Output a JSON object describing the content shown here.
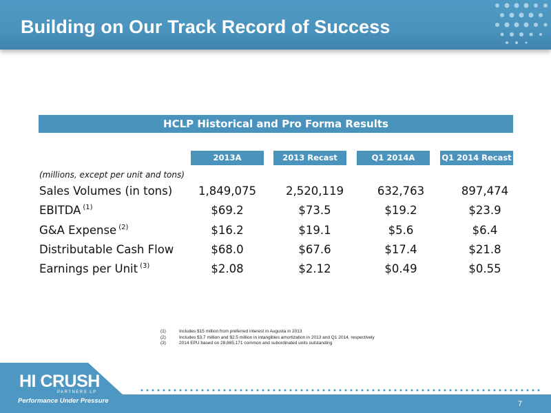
{
  "slide": {
    "title": "Building on Our Track Record of Success",
    "page_number": "7"
  },
  "table": {
    "banner": "HCLP Historical and Pro Forma Results",
    "columns": [
      "2013A",
      "2013 Recast",
      "Q1 2014A",
      "Q1 2014 Recast"
    ],
    "units_note": "(millions, except per unit and tons)",
    "rows": [
      {
        "label": "Sales Volumes (in tons)",
        "note": "",
        "values": [
          "1,849,075",
          "2,520,119",
          "632,763",
          "897,474"
        ]
      },
      {
        "label": "EBITDA",
        "note": "(1)",
        "values": [
          "$69.2",
          "$73.5",
          "$19.2",
          "$23.9"
        ]
      },
      {
        "label": "G&A Expense",
        "note": "(2)",
        "values": [
          "$16.2",
          "$19.1",
          "$5.6",
          "$6.4"
        ]
      },
      {
        "label": "Distributable Cash Flow",
        "note": "",
        "values": [
          "$68.0",
          "$67.6",
          "$17.4",
          "$21.8"
        ]
      },
      {
        "label": "Earnings per Unit",
        "note": "(3)",
        "values": [
          "$2.08",
          "$2.12",
          "$0.49",
          "$0.55"
        ]
      }
    ]
  },
  "footnotes": [
    {
      "num": "(1)",
      "text": "Includes $15 million from preferred interest in Augusta in 2013"
    },
    {
      "num": "(2)",
      "text": "Includes $3.7 million and $2.5 million in intangibles amortization in 2013 and Q1 2014, respectively"
    },
    {
      "num": "(3)",
      "text": "2014 EPU based on 28,865,171 common and subordinated units outstanding"
    }
  ],
  "logo": {
    "name": "HI CRUSH",
    "sub": "PARTNERS LP",
    "tagline": "Performance Under Pressure"
  },
  "colors": {
    "brand_blue": "#4a93bd",
    "footer_blue": "#4e97c2"
  }
}
